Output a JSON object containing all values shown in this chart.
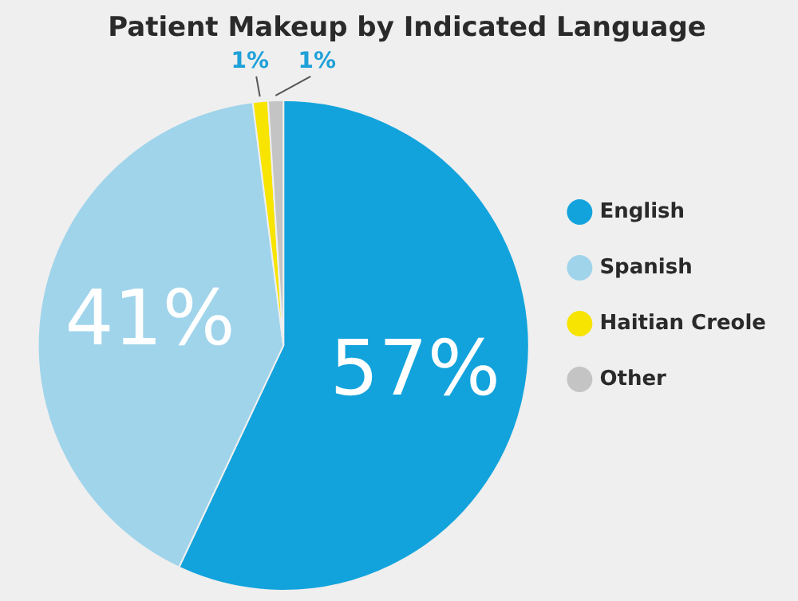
{
  "chart_data": {
    "type": "pie",
    "title": "Patient Makeup by Indicated Language",
    "categories": [
      "English",
      "Spanish",
      "Haitian Creole",
      "Other"
    ],
    "values": [
      57,
      41,
      1,
      1
    ],
    "colors": [
      "#12a3dc",
      "#9fd4eb",
      "#f7e400",
      "#c4c4c4"
    ],
    "value_labels": [
      "57%",
      "41%",
      "1%",
      "1%"
    ],
    "legend": "right"
  }
}
